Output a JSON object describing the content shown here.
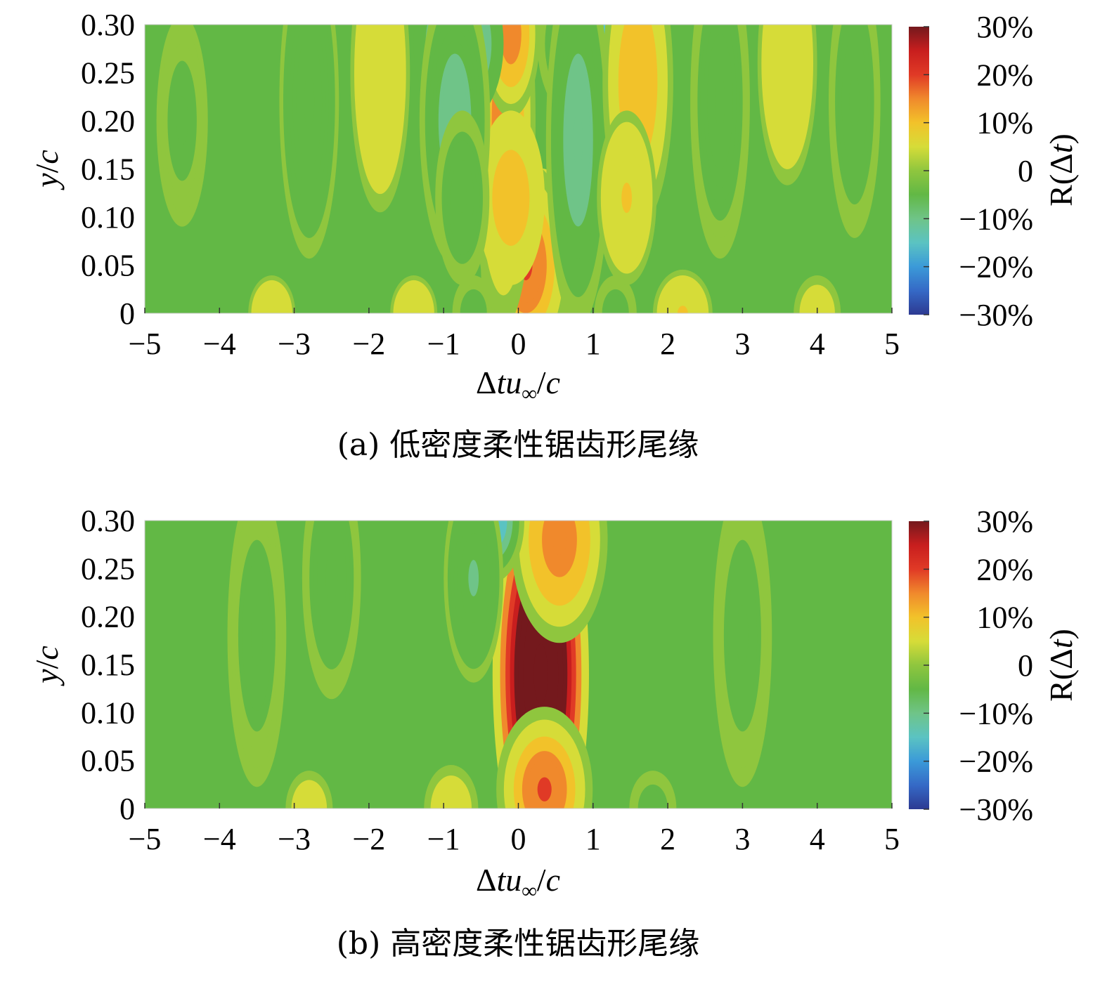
{
  "colorbar": {
    "ticks": [
      "30%",
      "20%",
      "10%",
      "0",
      "−10%",
      "−20%",
      "−30%"
    ],
    "label_main": "R(Δ",
    "label_italic": "t",
    "label_close": ")",
    "colors": [
      "#2d3a92",
      "#3569c6",
      "#3b9ad8",
      "#5bc3c2",
      "#6fc488",
      "#62b845",
      "#8fc63e",
      "#d6dc38",
      "#f2c22a",
      "#f0892c",
      "#e03a26",
      "#c81e1e",
      "#74191d"
    ]
  },
  "chart_data": [
    {
      "type": "heatmap",
      "caption": "(a) 低密度柔性锯齿形尾缘",
      "xlabel": "Δtu∞/c",
      "ylabel": "y/c",
      "xlim": [
        -5,
        5
      ],
      "ylim": [
        0,
        0.3
      ],
      "clim": [
        -30,
        30
      ],
      "xticks": [
        "−5",
        "−4",
        "−3",
        "−2",
        "−1",
        "0",
        "1",
        "2",
        "3",
        "4",
        "5"
      ],
      "yticks": [
        "0",
        "0.05",
        "0.10",
        "0.15",
        "0.20",
        "0.25",
        "0.30"
      ],
      "features": [
        {
          "x": 0.3,
          "y": 0.0,
          "value": 26,
          "sx": 0.3,
          "sy": 0.07
        },
        {
          "x": 0.1,
          "y": 0.05,
          "value": 18,
          "sx": 0.28,
          "sy": 0.05
        },
        {
          "x": -0.2,
          "y": 0.2,
          "value": 16,
          "sx": 0.2,
          "sy": 0.1
        },
        {
          "x": -0.1,
          "y": 0.29,
          "value": 15,
          "sx": 0.18,
          "sy": 0.04
        },
        {
          "x": -0.1,
          "y": 0.12,
          "value": 10,
          "sx": 0.25,
          "sy": 0.05
        },
        {
          "x": -0.8,
          "y": 0.28,
          "value": -24,
          "sx": 0.28,
          "sy": 0.04
        },
        {
          "x": -0.85,
          "y": 0.2,
          "value": -12,
          "sx": 0.22,
          "sy": 0.07
        },
        {
          "x": -0.75,
          "y": 0.12,
          "value": -6,
          "sx": 0.2,
          "sy": 0.05
        },
        {
          "x": 0.9,
          "y": 0.28,
          "value": -20,
          "sx": 0.3,
          "sy": 0.04
        },
        {
          "x": 0.8,
          "y": 0.18,
          "value": -12,
          "sx": 0.2,
          "sy": 0.09
        },
        {
          "x": 1.6,
          "y": 0.24,
          "value": 12,
          "sx": 0.22,
          "sy": 0.07
        },
        {
          "x": 1.45,
          "y": 0.12,
          "value": 8,
          "sx": 0.22,
          "sy": 0.05
        },
        {
          "x": -1.85,
          "y": 0.25,
          "value": 7,
          "sx": 0.22,
          "sy": 0.08
        },
        {
          "x": -2.8,
          "y": 0.22,
          "value": -7,
          "sx": 0.22,
          "sy": 0.09
        },
        {
          "x": 2.7,
          "y": 0.22,
          "value": -6,
          "sx": 0.22,
          "sy": 0.09
        },
        {
          "x": 3.6,
          "y": 0.26,
          "value": 7,
          "sx": 0.22,
          "sy": 0.07
        },
        {
          "x": 4.5,
          "y": 0.22,
          "value": -5,
          "sx": 0.22,
          "sy": 0.09
        },
        {
          "x": -4.5,
          "y": 0.2,
          "value": -3,
          "sx": 0.25,
          "sy": 0.08
        },
        {
          "x": -3.3,
          "y": 0.0,
          "value": 5,
          "sx": 0.2,
          "sy": 0.025
        },
        {
          "x": -1.4,
          "y": 0.0,
          "value": 5,
          "sx": 0.2,
          "sy": 0.025
        },
        {
          "x": -0.6,
          "y": 0.0,
          "value": -4,
          "sx": 0.18,
          "sy": 0.025
        },
        {
          "x": 1.3,
          "y": 0.0,
          "value": -4,
          "sx": 0.18,
          "sy": 0.025
        },
        {
          "x": 2.2,
          "y": 0.0,
          "value": 8,
          "sx": 0.22,
          "sy": 0.025
        },
        {
          "x": 4.0,
          "y": 0.0,
          "value": 4,
          "sx": 0.2,
          "sy": 0.025
        }
      ]
    },
    {
      "type": "heatmap",
      "caption": "(b) 高密度柔性锯齿形尾缘",
      "xlabel": "Δtu∞/c",
      "ylabel": "y/c",
      "xlim": [
        -5,
        5
      ],
      "ylim": [
        0,
        0.3
      ],
      "clim": [
        -30,
        30
      ],
      "xticks": [
        "−5",
        "−4",
        "−3",
        "−2",
        "−1",
        "0",
        "1",
        "2",
        "3",
        "4",
        "5"
      ],
      "yticks": [
        "0",
        "0.05",
        "0.10",
        "0.15",
        "0.20",
        "0.25",
        "0.30"
      ],
      "features": [
        {
          "x": 0.3,
          "y": 0.14,
          "value": 50,
          "sx": 0.3,
          "sy": 0.1
        },
        {
          "x": 0.35,
          "y": 0.02,
          "value": 18,
          "sx": 0.3,
          "sy": 0.04
        },
        {
          "x": 0.55,
          "y": 0.28,
          "value": 16,
          "sx": 0.3,
          "sy": 0.05
        },
        {
          "x": -0.35,
          "y": 0.3,
          "value": -18,
          "sx": 0.2,
          "sy": 0.03
        },
        {
          "x": -0.6,
          "y": 0.24,
          "value": -8,
          "sx": 0.22,
          "sy": 0.06
        },
        {
          "x": -2.5,
          "y": 0.24,
          "value": -5,
          "sx": 0.25,
          "sy": 0.08
        },
        {
          "x": -3.5,
          "y": 0.18,
          "value": -4,
          "sx": 0.25,
          "sy": 0.1
        },
        {
          "x": 3.0,
          "y": 0.18,
          "value": -4,
          "sx": 0.25,
          "sy": 0.1
        },
        {
          "x": -0.9,
          "y": 0.0,
          "value": 6,
          "sx": 0.2,
          "sy": 0.025
        },
        {
          "x": -2.8,
          "y": 0.0,
          "value": 4,
          "sx": 0.2,
          "sy": 0.025
        },
        {
          "x": 1.8,
          "y": 0.0,
          "value": -4,
          "sx": 0.2,
          "sy": 0.025
        }
      ]
    }
  ]
}
